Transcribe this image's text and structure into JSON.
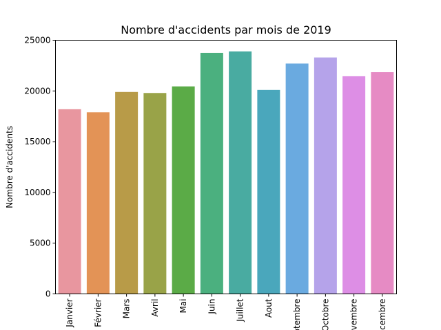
{
  "chart_data": {
    "type": "bar",
    "title": "Nombre d'accidents par mois de 2019",
    "xlabel": "",
    "ylabel": "Nombre d'accidents",
    "categories": [
      "Janvier",
      "Février",
      "Mars",
      "Avril",
      "Mai",
      "Juin",
      "Juillet",
      "Aout",
      "Septembre",
      "Octobre",
      "Novembre",
      "Décembre"
    ],
    "values": [
      18200,
      17900,
      19900,
      19800,
      20450,
      23750,
      23900,
      20100,
      22700,
      23300,
      21450,
      21850
    ],
    "colors": [
      "#e8969f",
      "#e39356",
      "#b89b48",
      "#99a348",
      "#5bab47",
      "#4bb07f",
      "#49aba1",
      "#4aa7bc",
      "#6aaae0",
      "#b5a3ea",
      "#dd8ee5",
      "#e68bc4"
    ],
    "ylim": [
      0,
      25000
    ],
    "yticks": [
      0,
      5000,
      10000,
      15000,
      20000,
      25000
    ],
    "grid": false,
    "legend": false
  }
}
